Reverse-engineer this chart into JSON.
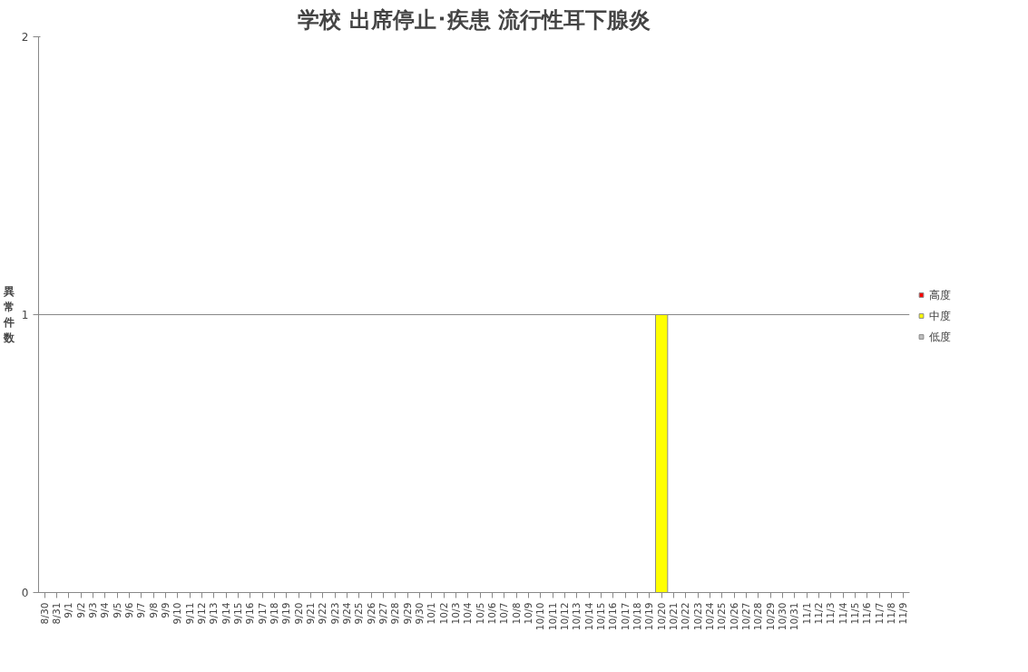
{
  "chart_data": {
    "type": "bar",
    "title": "学校 出席停止･疾患 流行性耳下腺炎",
    "ylabel": "異常件数",
    "categories": [
      "8/30",
      "8/31",
      "9/1",
      "9/2",
      "9/3",
      "9/4",
      "9/5",
      "9/6",
      "9/7",
      "9/8",
      "9/9",
      "9/10",
      "9/11",
      "9/12",
      "9/13",
      "9/14",
      "9/15",
      "9/16",
      "9/17",
      "9/18",
      "9/19",
      "9/20",
      "9/21",
      "9/22",
      "9/23",
      "9/24",
      "9/25",
      "9/26",
      "9/27",
      "9/28",
      "9/29",
      "9/30",
      "10/1",
      "10/2",
      "10/3",
      "10/4",
      "10/5",
      "10/6",
      "10/7",
      "10/8",
      "10/9",
      "10/10",
      "10/11",
      "10/12",
      "10/13",
      "10/14",
      "10/15",
      "10/16",
      "10/17",
      "10/18",
      "10/19",
      "10/20",
      "10/21",
      "10/22",
      "10/23",
      "10/24",
      "10/25",
      "10/26",
      "10/27",
      "10/28",
      "10/29",
      "10/30",
      "10/31",
      "11/1",
      "11/2",
      "11/3",
      "11/4",
      "11/5",
      "11/6",
      "11/7",
      "11/8",
      "11/9"
    ],
    "stacked": true,
    "series": [
      {
        "name": "高度",
        "color": "#ff0000",
        "values": [
          0,
          0,
          0,
          0,
          0,
          0,
          0,
          0,
          0,
          0,
          0,
          0,
          0,
          0,
          0,
          0,
          0,
          0,
          0,
          0,
          0,
          0,
          0,
          0,
          0,
          0,
          0,
          0,
          0,
          0,
          0,
          0,
          0,
          0,
          0,
          0,
          0,
          0,
          0,
          0,
          0,
          0,
          0,
          0,
          0,
          0,
          0,
          0,
          0,
          0,
          0,
          0,
          0,
          0,
          0,
          0,
          0,
          0,
          0,
          0,
          0,
          0,
          0,
          0,
          0,
          0,
          0,
          0,
          0,
          0,
          0,
          0
        ]
      },
      {
        "name": "中度",
        "color": "#ffff00",
        "values": [
          0,
          0,
          0,
          0,
          0,
          0,
          0,
          0,
          0,
          0,
          0,
          0,
          0,
          0,
          0,
          0,
          0,
          0,
          0,
          0,
          0,
          0,
          0,
          0,
          0,
          0,
          0,
          0,
          0,
          0,
          0,
          0,
          0,
          0,
          0,
          0,
          0,
          0,
          0,
          0,
          0,
          0,
          0,
          0,
          0,
          0,
          0,
          0,
          0,
          0,
          0,
          1,
          0,
          0,
          0,
          0,
          0,
          0,
          0,
          0,
          0,
          0,
          0,
          0,
          0,
          0,
          0,
          0,
          0,
          0,
          0,
          0
        ]
      },
      {
        "name": "低度",
        "color": "#c0c0c0",
        "values": [
          0,
          0,
          0,
          0,
          0,
          0,
          0,
          0,
          0,
          0,
          0,
          0,
          0,
          0,
          0,
          0,
          0,
          0,
          0,
          0,
          0,
          0,
          0,
          0,
          0,
          0,
          0,
          0,
          0,
          0,
          0,
          0,
          0,
          0,
          0,
          0,
          0,
          0,
          0,
          0,
          0,
          0,
          0,
          0,
          0,
          0,
          0,
          0,
          0,
          0,
          0,
          0,
          0,
          0,
          0,
          0,
          0,
          0,
          0,
          0,
          0,
          0,
          0,
          0,
          0,
          0,
          0,
          0,
          0,
          0,
          0,
          0
        ]
      }
    ],
    "ylim": [
      0,
      2
    ],
    "yticks": [
      0,
      1,
      2
    ],
    "grid": "y",
    "legend": "right"
  }
}
